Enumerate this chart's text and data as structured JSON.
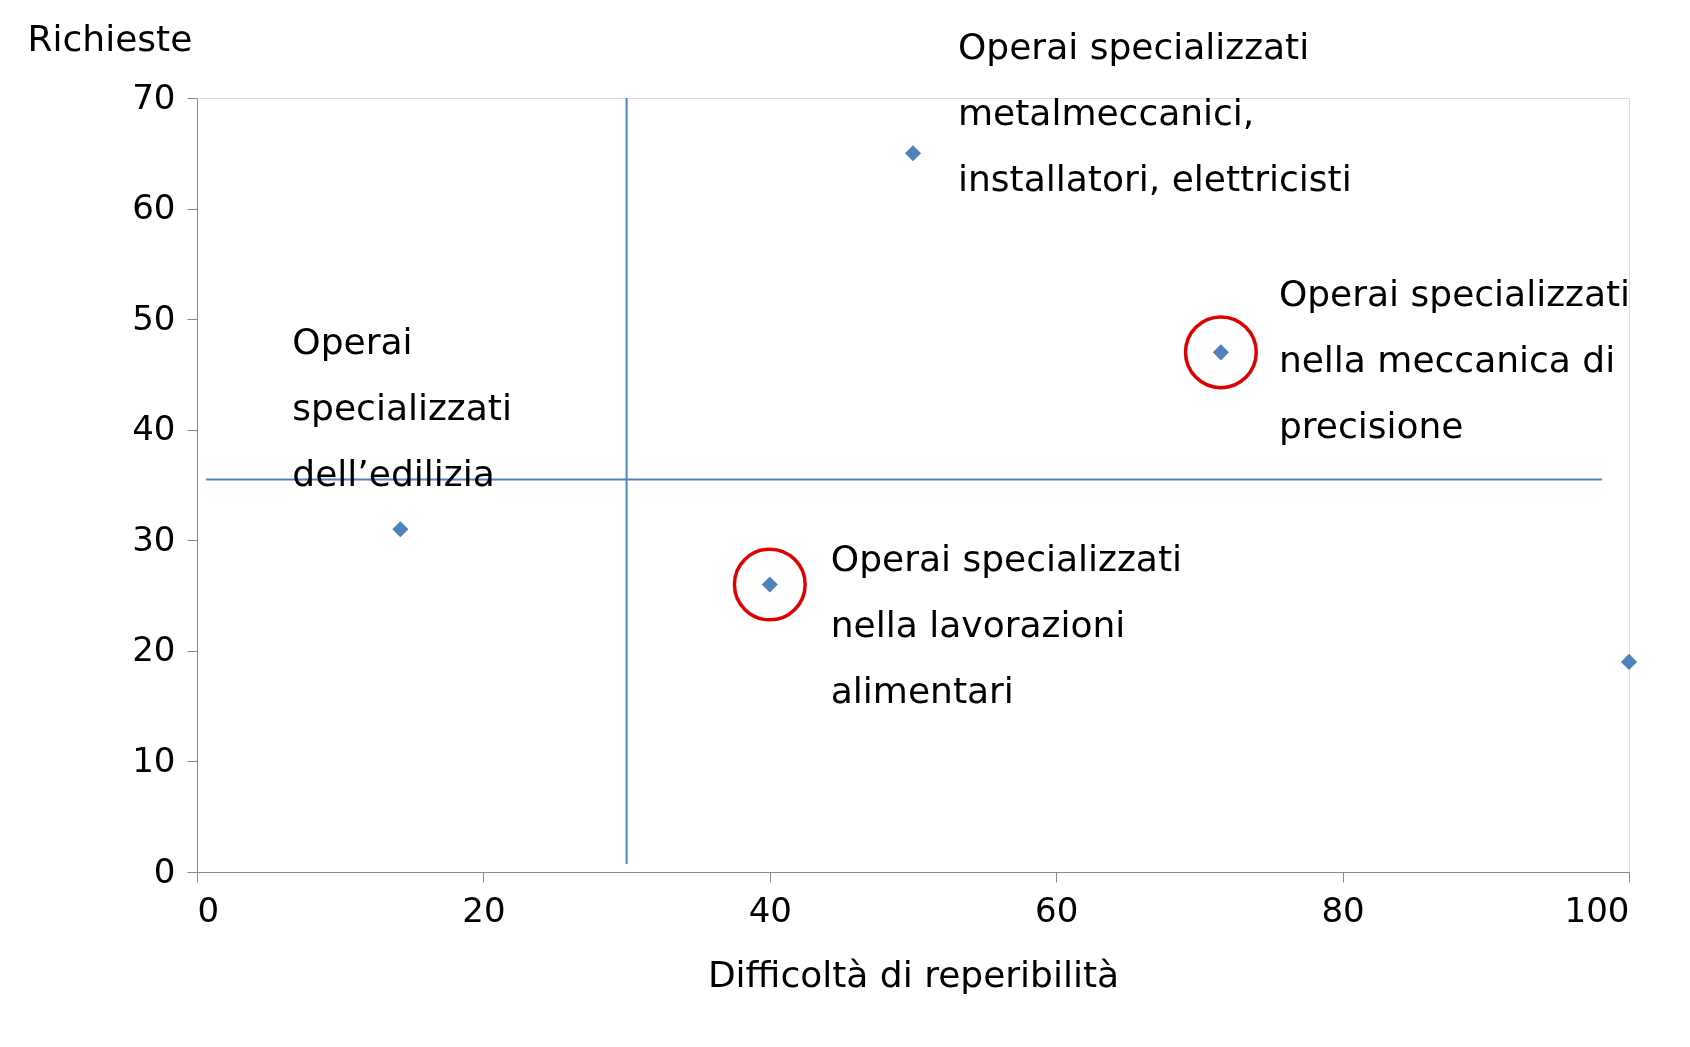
{
  "chart_data": {
    "type": "scatter",
    "xlabel": "Difficoltà di reperibilità",
    "ylabel": "Richieste",
    "x": [
      14.2,
      40,
      50,
      71.5,
      100
    ],
    "series": [
      {
        "color": "#4f81bd",
        "values": [
          31,
          26,
          65,
          47,
          19
        ]
      }
    ],
    "xlim": [
      0,
      100
    ],
    "xticks": [
      0,
      20,
      40,
      60,
      80,
      100
    ],
    "ylim": [
      0,
      70
    ],
    "yticks": [
      0,
      10,
      20,
      30,
      40,
      50,
      60,
      70
    ],
    "marker": "diamond",
    "grid": false,
    "ref_lines": [
      {
        "axis": "x",
        "value": 30,
        "color": "#4f81bd"
      },
      {
        "axis": "y",
        "value": 35.5,
        "color": "#4f81bd"
      }
    ],
    "annotations": [
      {
        "text": "Operai\nspecializzati\ndell’edilizia",
        "x": 14.2,
        "y": 31
      },
      {
        "text": "Operai specializzati\nnella lavorazioni\nalimentari",
        "x": 40,
        "y": 26
      },
      {
        "text": "Operai specializzati\nmetalmeccanici,\ninstallatori, elettricisti",
        "x": 50,
        "y": 65
      },
      {
        "text": "Operai specializzati\nnella meccanica di\nprecisione",
        "x": 71.5,
        "y": 47
      }
    ]
  }
}
